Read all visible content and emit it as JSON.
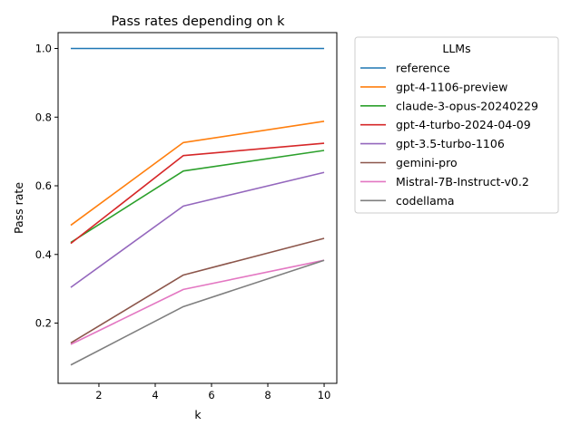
{
  "chart_data": {
    "type": "line",
    "title": "Pass rates depending on k",
    "xlabel": "k",
    "ylabel": "Pass rate",
    "xlim": [
      0.55,
      10.45
    ],
    "ylim": [
      0.0245,
      1.0462
    ],
    "x_ticks": [
      2,
      4,
      6,
      8,
      10
    ],
    "y_ticks": [
      0.2,
      0.4,
      0.6,
      0.8,
      1.0
    ],
    "x_tick_labels": [
      "2",
      "4",
      "6",
      "8",
      "10"
    ],
    "y_tick_labels": [
      "0.2",
      "0.4",
      "0.6",
      "0.8",
      "1.0"
    ],
    "grid": false,
    "legend": {
      "title": "LLMs",
      "placement": "outside-right"
    },
    "x": [
      1,
      5,
      10
    ],
    "series": [
      {
        "name": "reference",
        "color": "#1f77b4",
        "values": [
          1.0,
          1.0,
          1.0
        ]
      },
      {
        "name": "gpt-4-1106-preview",
        "color": "#ff7f0e",
        "values": [
          0.485,
          0.726,
          0.788
        ]
      },
      {
        "name": "claude-3-opus-20240229",
        "color": "#2ca02c",
        "values": [
          0.435,
          0.643,
          0.703
        ]
      },
      {
        "name": "gpt-4-turbo-2024-04-09",
        "color": "#d62728",
        "values": [
          0.432,
          0.688,
          0.724
        ]
      },
      {
        "name": "gpt-3.5-turbo-1106",
        "color": "#9467bd",
        "values": [
          0.304,
          0.541,
          0.639
        ]
      },
      {
        "name": "gemini-pro",
        "color": "#8c564b",
        "values": [
          0.142,
          0.34,
          0.447
        ]
      },
      {
        "name": "Mistral-7B-Instruct-v0.2",
        "color": "#e377c2",
        "values": [
          0.138,
          0.298,
          0.383
        ]
      },
      {
        "name": "codellama",
        "color": "#7f7f7f",
        "values": [
          0.078,
          0.248,
          0.383
        ]
      }
    ]
  }
}
